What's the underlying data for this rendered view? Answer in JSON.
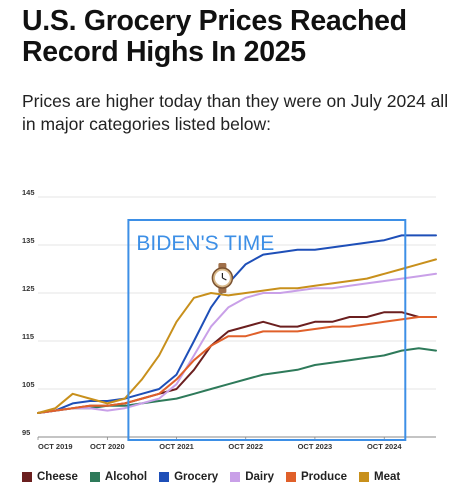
{
  "header": {
    "title": "U.S. Grocery Prices Reached Record Highs In 2025",
    "subtitle": "Prices are higher today than they were on July 2024 all in major categories listed below:"
  },
  "chart_data": {
    "type": "line",
    "title": "",
    "xlabel": "",
    "ylabel": "",
    "ylim": [
      95,
      145
    ],
    "yticks": [
      95,
      105,
      115,
      125,
      135,
      145
    ],
    "xlim": [
      "2019-10-01",
      "2025-07-01"
    ],
    "xticks": [
      {
        "date": "2019-10-01",
        "label": "OCT 2019"
      },
      {
        "date": "2020-10-01",
        "label": "OCT 2020"
      },
      {
        "date": "2021-10-01",
        "label": "OCT 2021"
      },
      {
        "date": "2022-10-01",
        "label": "OCT 2022"
      },
      {
        "date": "2023-10-01",
        "label": "OCT 2023"
      },
      {
        "date": "2024-10-01",
        "label": "OCT 2024"
      }
    ],
    "grid": true,
    "legend_position": "bottom",
    "annotation": {
      "text": "BIDEN'S TIME",
      "icon": "watch-icon",
      "box_from": "2021-01-20",
      "box_to": "2025-01-20",
      "color": "#3d8fe6"
    },
    "series": [
      {
        "name": "Cheese",
        "color": "#6b1f1f",
        "x": [
          "2019-10-01",
          "2020-01-01",
          "2020-04-01",
          "2020-07-01",
          "2020-10-01",
          "2021-01-01",
          "2021-04-01",
          "2021-07-01",
          "2021-10-01",
          "2022-01-01",
          "2022-04-01",
          "2022-07-01",
          "2022-10-01",
          "2023-01-01",
          "2023-04-01",
          "2023-07-01",
          "2023-10-01",
          "2024-01-01",
          "2024-04-01",
          "2024-07-01",
          "2024-10-01",
          "2025-01-01",
          "2025-04-01",
          "2025-07-01"
        ],
        "values": [
          100,
          100.5,
          101,
          101.5,
          101.5,
          102,
          103,
          104,
          105,
          109,
          114,
          117,
          118,
          119,
          118,
          118,
          119,
          119,
          120,
          120,
          121,
          121,
          120,
          120
        ]
      },
      {
        "name": "Alcohol",
        "color": "#2e7a5a",
        "x": [
          "2019-10-01",
          "2020-01-01",
          "2020-04-01",
          "2020-07-01",
          "2020-10-01",
          "2021-01-01",
          "2021-04-01",
          "2021-07-01",
          "2021-10-01",
          "2022-01-01",
          "2022-04-01",
          "2022-07-01",
          "2022-10-01",
          "2023-01-01",
          "2023-04-01",
          "2023-07-01",
          "2023-10-01",
          "2024-01-01",
          "2024-04-01",
          "2024-07-01",
          "2024-10-01",
          "2025-01-01",
          "2025-04-01",
          "2025-07-01"
        ],
        "values": [
          100,
          100.5,
          101,
          101,
          101.5,
          101.5,
          102,
          102.5,
          103,
          104,
          105,
          106,
          107,
          108,
          108.5,
          109,
          110,
          110.5,
          111,
          111.5,
          112,
          113,
          113.5,
          113
        ]
      },
      {
        "name": "Grocery",
        "color": "#1e4fb8",
        "x": [
          "2019-10-01",
          "2020-01-01",
          "2020-04-01",
          "2020-07-01",
          "2020-10-01",
          "2021-01-01",
          "2021-04-01",
          "2021-07-01",
          "2021-10-01",
          "2022-01-01",
          "2022-04-01",
          "2022-07-01",
          "2022-10-01",
          "2023-01-01",
          "2023-04-01",
          "2023-07-01",
          "2023-10-01",
          "2024-01-01",
          "2024-04-01",
          "2024-07-01",
          "2024-10-01",
          "2025-01-01",
          "2025-04-01",
          "2025-07-01"
        ],
        "values": [
          100,
          100.5,
          102,
          102.5,
          102.5,
          103,
          104,
          105,
          108,
          115,
          122,
          127,
          131,
          133,
          133.5,
          134,
          134,
          134.5,
          135,
          135.5,
          136,
          137,
          137,
          137
        ]
      },
      {
        "name": "Dairy",
        "color": "#c9a0e8",
        "x": [
          "2019-10-01",
          "2020-01-01",
          "2020-04-01",
          "2020-07-01",
          "2020-10-01",
          "2021-01-01",
          "2021-04-01",
          "2021-07-01",
          "2021-10-01",
          "2022-01-01",
          "2022-04-01",
          "2022-07-01",
          "2022-10-01",
          "2023-01-01",
          "2023-04-01",
          "2023-07-01",
          "2023-10-01",
          "2024-01-01",
          "2024-04-01",
          "2024-07-01",
          "2024-10-01",
          "2025-01-01",
          "2025-04-01",
          "2025-07-01"
        ],
        "values": [
          100,
          100.5,
          101,
          101,
          100.5,
          101,
          102,
          103,
          106,
          112,
          118,
          122,
          124,
          125,
          125,
          125.5,
          126,
          126,
          126.5,
          127,
          127.5,
          128,
          128.5,
          129
        ]
      },
      {
        "name": "Produce",
        "color": "#e0602a",
        "x": [
          "2019-10-01",
          "2020-01-01",
          "2020-04-01",
          "2020-07-01",
          "2020-10-01",
          "2021-01-01",
          "2021-04-01",
          "2021-07-01",
          "2021-10-01",
          "2022-01-01",
          "2022-04-01",
          "2022-07-01",
          "2022-10-01",
          "2023-01-01",
          "2023-04-01",
          "2023-07-01",
          "2023-10-01",
          "2024-01-01",
          "2024-04-01",
          "2024-07-01",
          "2024-10-01",
          "2025-01-01",
          "2025-04-01",
          "2025-07-01"
        ],
        "values": [
          100,
          100.5,
          101,
          101.5,
          101.5,
          102,
          103,
          104,
          107,
          111,
          114,
          116,
          116,
          117,
          117,
          117,
          117.5,
          118,
          118,
          118.5,
          119,
          119.5,
          120,
          120
        ]
      },
      {
        "name": "Meat",
        "color": "#c8901c",
        "x": [
          "2019-10-01",
          "2020-01-01",
          "2020-04-01",
          "2020-07-01",
          "2020-10-01",
          "2021-01-01",
          "2021-04-01",
          "2021-07-01",
          "2021-10-01",
          "2022-01-01",
          "2022-04-01",
          "2022-07-01",
          "2022-10-01",
          "2023-01-01",
          "2023-04-01",
          "2023-07-01",
          "2023-10-01",
          "2024-01-01",
          "2024-04-01",
          "2024-07-01",
          "2024-10-01",
          "2025-01-01",
          "2025-04-01",
          "2025-07-01"
        ],
        "values": [
          100,
          101,
          104,
          103,
          102,
          103,
          107,
          112,
          119,
          124,
          125,
          124.5,
          125,
          125.5,
          126,
          126,
          126.5,
          127,
          127.5,
          128,
          129,
          130,
          131,
          132
        ]
      }
    ]
  }
}
